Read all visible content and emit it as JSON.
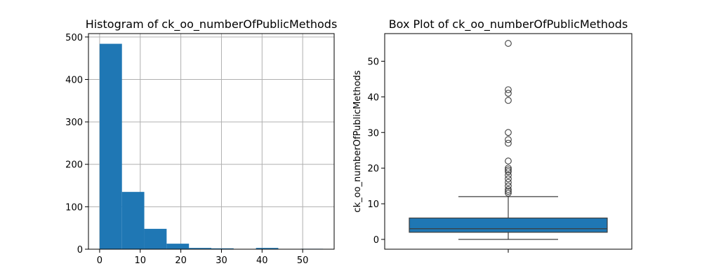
{
  "colors": {
    "bar": "#1f77b4",
    "grid": "#b0b0b0",
    "axis": "#000000",
    "flier": "#3d3d3d",
    "median": "#3d3d3d"
  },
  "chart_data": [
    {
      "type": "bar",
      "title": "Histogram of ck_oo_numberOfPublicMethods",
      "xlabel": "",
      "ylabel": "",
      "grid": true,
      "bins": [
        {
          "start": 0,
          "end": 5.5,
          "count": 484
        },
        {
          "start": 5.5,
          "end": 11,
          "count": 135
        },
        {
          "start": 11,
          "end": 16.5,
          "count": 48
        },
        {
          "start": 16.5,
          "end": 22,
          "count": 13
        },
        {
          "start": 22,
          "end": 27.5,
          "count": 3
        },
        {
          "start": 27.5,
          "end": 33,
          "count": 2
        },
        {
          "start": 33,
          "end": 38.5,
          "count": 0
        },
        {
          "start": 38.5,
          "end": 44,
          "count": 3
        },
        {
          "start": 44,
          "end": 49.5,
          "count": 0
        },
        {
          "start": 49.5,
          "end": 55,
          "count": 1
        }
      ],
      "xlim": [
        -2.75,
        57.75
      ],
      "ylim": [
        0,
        508
      ],
      "xticks": [
        "0",
        "10",
        "20",
        "30",
        "40",
        "50"
      ],
      "yticks": [
        "0",
        "100",
        "200",
        "300",
        "400",
        "500"
      ]
    },
    {
      "type": "box",
      "title": "Box Plot of ck_oo_numberOfPublicMethods",
      "xlabel": "",
      "ylabel": "ck_oo_numberOfPublicMethods",
      "grid": false,
      "min": 0,
      "q1": 2,
      "median": 3,
      "q3": 6,
      "whisker_high": 12,
      "outliers": [
        13,
        13.5,
        14,
        15,
        16,
        17,
        18,
        19,
        19.5,
        20,
        22,
        27,
        28,
        30,
        39,
        41,
        42,
        55
      ],
      "ylim": [
        -2.75,
        57.75
      ],
      "yticks": [
        "0",
        "10",
        "20",
        "30",
        "40",
        "50"
      ]
    }
  ]
}
